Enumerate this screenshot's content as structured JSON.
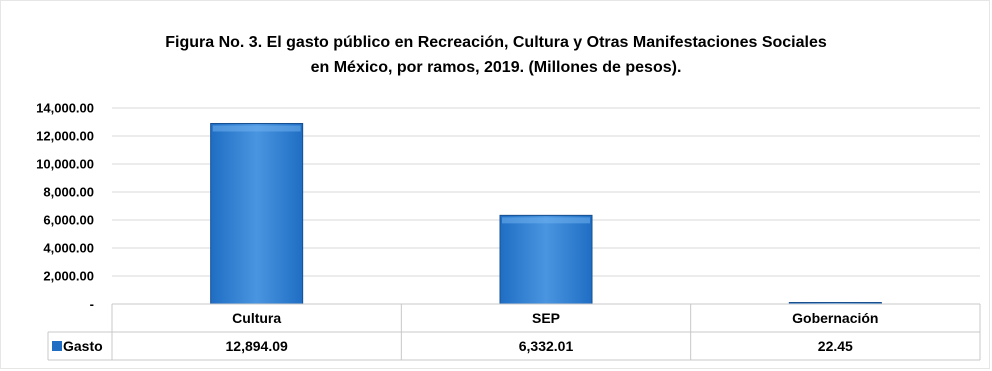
{
  "chart_data": {
    "type": "bar",
    "title_line1": "Figura No. 3. El gasto público en Recreación, Cultura y Otras Manifestaciones Sociales",
    "title_line2": "en México, por ramos, 2019. (Millones de pesos).",
    "categories": [
      "Cultura",
      "SEP",
      "Gobernación"
    ],
    "series": [
      {
        "name": "Gasto",
        "values": [
          12894.09,
          6332.01,
          22.45
        ],
        "value_labels": [
          "12,894.09",
          "6,332.01",
          "22.45"
        ]
      }
    ],
    "ylim": [
      0,
      14000
    ],
    "yticks": [
      0,
      2000,
      4000,
      6000,
      8000,
      10000,
      12000,
      14000
    ],
    "ytick_labels": [
      "-",
      "2,000.00",
      "4,000.00",
      "6,000.00",
      "8,000.00",
      "10,000.00",
      "12,000.00",
      "14,000.00"
    ],
    "grid": true,
    "legend": "data-table",
    "bar_color": "#1f6ec4",
    "bar_color_light": "#4a95e0"
  }
}
